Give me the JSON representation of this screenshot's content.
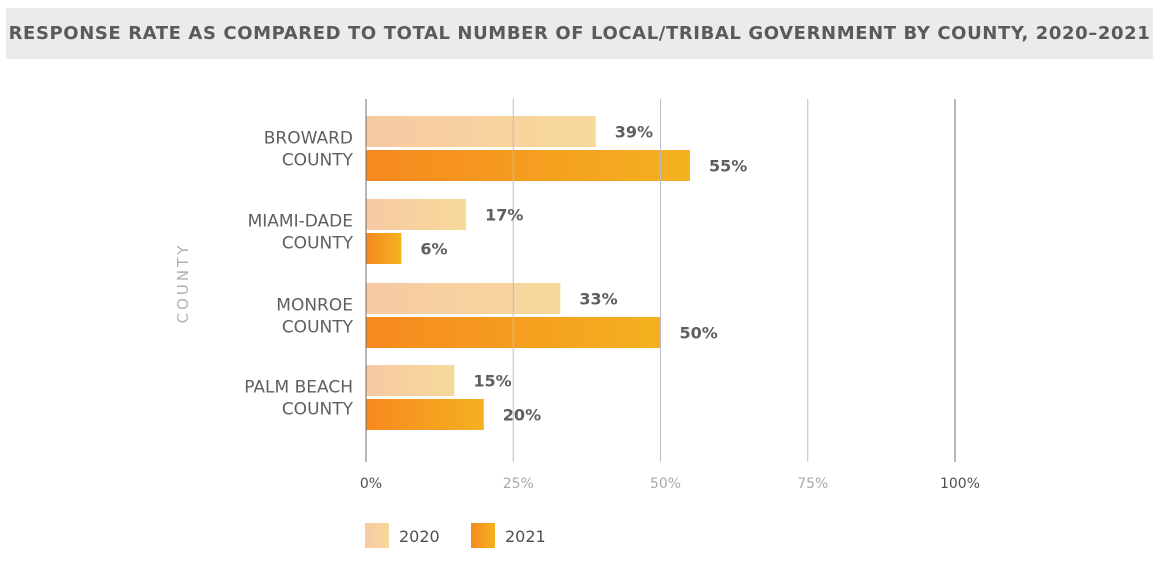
{
  "chart_data": {
    "type": "bar",
    "orientation": "horizontal",
    "title": "RESPONSE RATE AS COMPARED TO TOTAL NUMBER OF LOCAL/TRIBAL GOVERNMENT BY COUNTY, 2020–2021",
    "ylabel": "COUNTY",
    "xlabel": "",
    "categories": [
      [
        "BROWARD",
        "COUNTY"
      ],
      [
        "MIAMI-DADE",
        "COUNTY"
      ],
      [
        "MONROE",
        "COUNTY"
      ],
      [
        "PALM BEACH",
        "COUNTY"
      ]
    ],
    "series": [
      {
        "name": "2020",
        "values": [
          39,
          17,
          33,
          15
        ],
        "labels": [
          "39%",
          "17%",
          "33%",
          "15%"
        ],
        "color_from": "#f7c9a3",
        "color_to": "#f7d99a"
      },
      {
        "name": "2021",
        "values": [
          55,
          6,
          50,
          20
        ],
        "labels": [
          "55%",
          "6%",
          "50%",
          "20%"
        ],
        "color_from": "#f6891f",
        "color_to": "#f4b11f"
      }
    ],
    "xlim": [
      0,
      100
    ],
    "ticks": [
      {
        "value": 0,
        "label": "0%",
        "color": "#4f4f4f"
      },
      {
        "value": 25,
        "label": "25%",
        "color": "#a9a9a9"
      },
      {
        "value": 50,
        "label": "50%",
        "color": "#a9a9a9"
      },
      {
        "value": 75,
        "label": "75%",
        "color": "#a9a9a9"
      },
      {
        "value": 100,
        "label": "100%",
        "color": "#4f4f4f"
      }
    ],
    "grid": true,
    "legend_position": "bottom-left"
  }
}
